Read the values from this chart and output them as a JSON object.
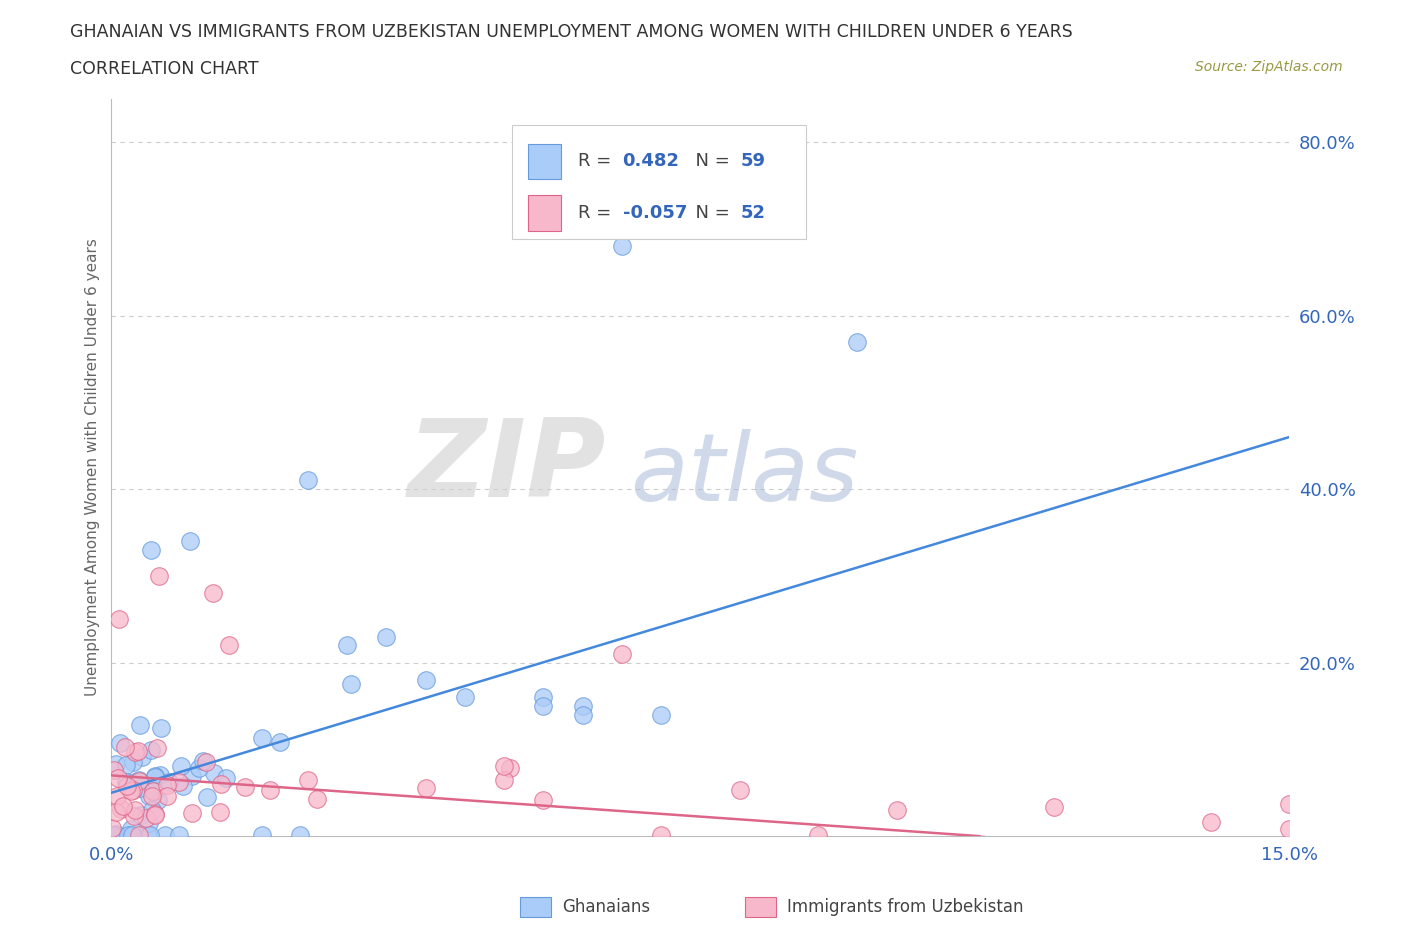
{
  "title_line1": "GHANAIAN VS IMMIGRANTS FROM UZBEKISTAN UNEMPLOYMENT AMONG WOMEN WITH CHILDREN UNDER 6 YEARS",
  "title_line2": "CORRELATION CHART",
  "source": "Source: ZipAtlas.com",
  "xlim": [
    0.0,
    0.15
  ],
  "ylim": [
    0.0,
    0.85
  ],
  "ytick_values": [
    0.0,
    0.2,
    0.4,
    0.6,
    0.8
  ],
  "ytick_labels": [
    "",
    "20.0%",
    "40.0%",
    "60.0%",
    "80.0%"
  ],
  "xtick_values": [
    0.0,
    0.15
  ],
  "xtick_labels": [
    "0.0%",
    "15.0%"
  ],
  "ylabel_text": "Unemployment Among Women with Children Under 6 years",
  "ghanaian_color": "#aaccf8",
  "ghanaian_edge": "#6699dd",
  "uzbek_color": "#f8b8cc",
  "uzbek_edge": "#dd6688",
  "trend_blue": "#4488dd",
  "trend_pink": "#dd6688",
  "R_ghana": 0.482,
  "N_ghana": 59,
  "R_uzbek": -0.057,
  "N_uzbek": 52,
  "watermark_ZIP": "ZIP",
  "watermark_atlas": "atlas",
  "legend_label_ghana": "Ghanaians",
  "legend_label_uzbek": "Immigrants from Uzbekistan",
  "bg_color": "#ffffff",
  "grid_color": "#cccccc",
  "text_color_dark": "#444444",
  "text_color_blue": "#3366bb",
  "source_color": "#999944"
}
